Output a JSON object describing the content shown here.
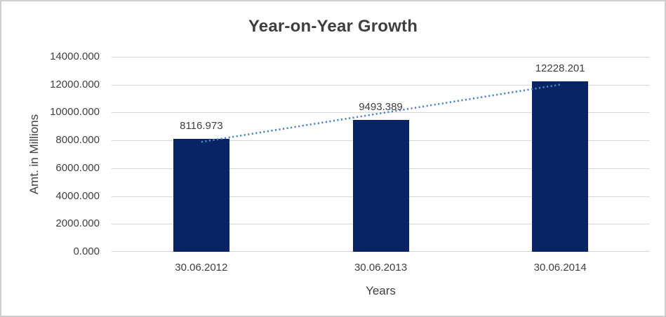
{
  "chart": {
    "title": "Year-on-Year Growth",
    "y_axis_title": "Amt. in Millions",
    "x_axis_title": "Years"
  },
  "chart_data": {
    "type": "bar",
    "title": "Year-on-Year Growth",
    "categories": [
      "30.06.2012",
      "30.06.2013",
      "30.06.2014"
    ],
    "values": [
      8116.973,
      9493.389,
      12228.201
    ],
    "data_labels": [
      "8116.973",
      "9493.389",
      "12228.201"
    ],
    "xlabel": "Years",
    "ylabel": "Amt. in Millions",
    "ylim": [
      0,
      14000
    ],
    "ytick_step": 2000,
    "ytick_decimals": 3,
    "grid": true,
    "legend": "none",
    "trendline": {
      "type": "linear",
      "style": "dotted"
    },
    "colors": {
      "bar": "#082464",
      "trendline": "#4a86c8",
      "gridline": "#d9d9d9",
      "text": "#404040",
      "title": "#3f3f3f",
      "background": "#ffffff",
      "border": "#cfcfcf"
    }
  }
}
